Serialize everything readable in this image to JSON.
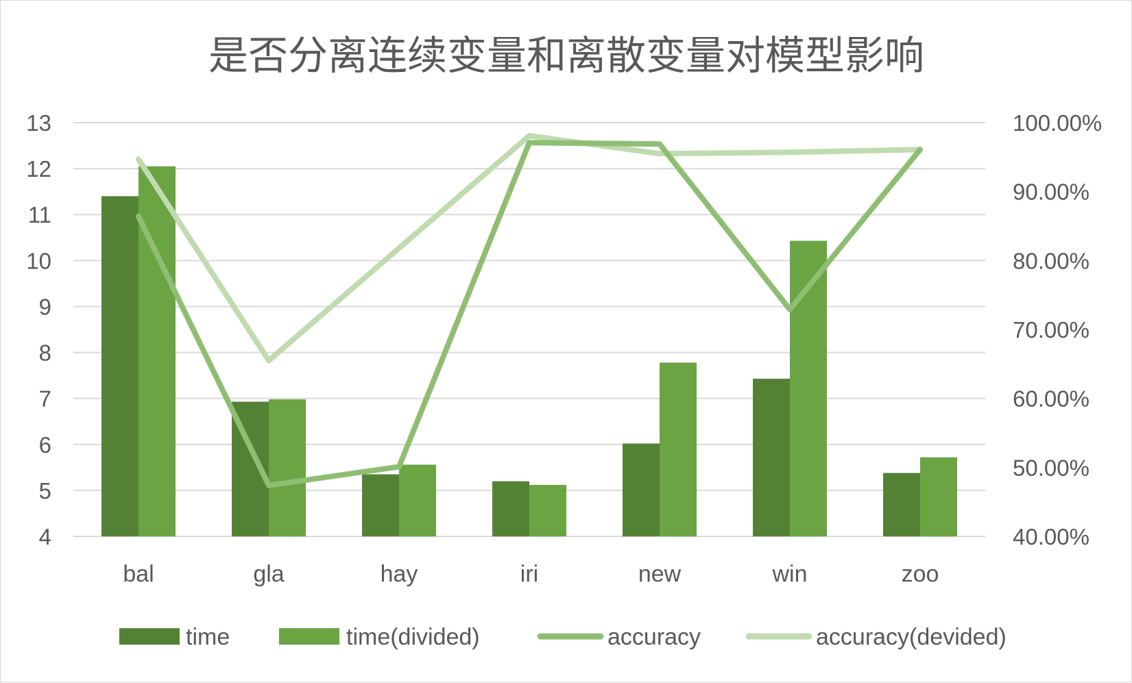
{
  "chart_data": {
    "type": "bar",
    "title": "是否分离连续变量和离散变量对模型影响",
    "categories": [
      "bal",
      "gla",
      "hay",
      "iri",
      "new",
      "win",
      "zoo"
    ],
    "y_left": {
      "min": 4,
      "max": 13,
      "step": 1,
      "ticks": [
        "13",
        "12",
        "11",
        "10",
        "9",
        "8",
        "7",
        "6",
        "5",
        "4"
      ]
    },
    "y_right": {
      "min": 0.4,
      "max": 1.0,
      "step": 0.1,
      "ticks": [
        "100.00%",
        "90.00%",
        "80.00%",
        "70.00%",
        "60.00%",
        "50.00%",
        "40.00%"
      ]
    },
    "series": [
      {
        "name": "time",
        "kind": "bar",
        "axis": "left",
        "color": "#548235",
        "values": [
          11.4,
          6.93,
          5.35,
          5.2,
          6.02,
          7.43,
          5.38
        ]
      },
      {
        "name": "time(divided)",
        "kind": "bar",
        "axis": "left",
        "color": "#6aa443",
        "values": [
          12.05,
          6.98,
          5.56,
          5.12,
          7.78,
          10.43,
          5.72
        ]
      },
      {
        "name": "accuracy",
        "kind": "line",
        "axis": "right",
        "color": "#8fbe73",
        "values": [
          0.864,
          0.474,
          0.501,
          0.971,
          0.969,
          0.729,
          0.961
        ]
      },
      {
        "name": "accuracy(devided)",
        "kind": "line",
        "axis": "right",
        "color": "#c0dbb0",
        "values": [
          0.947,
          0.655,
          0.818,
          0.981,
          0.955,
          0.957,
          0.961
        ]
      }
    ],
    "grid": true,
    "legend": "bottom"
  }
}
